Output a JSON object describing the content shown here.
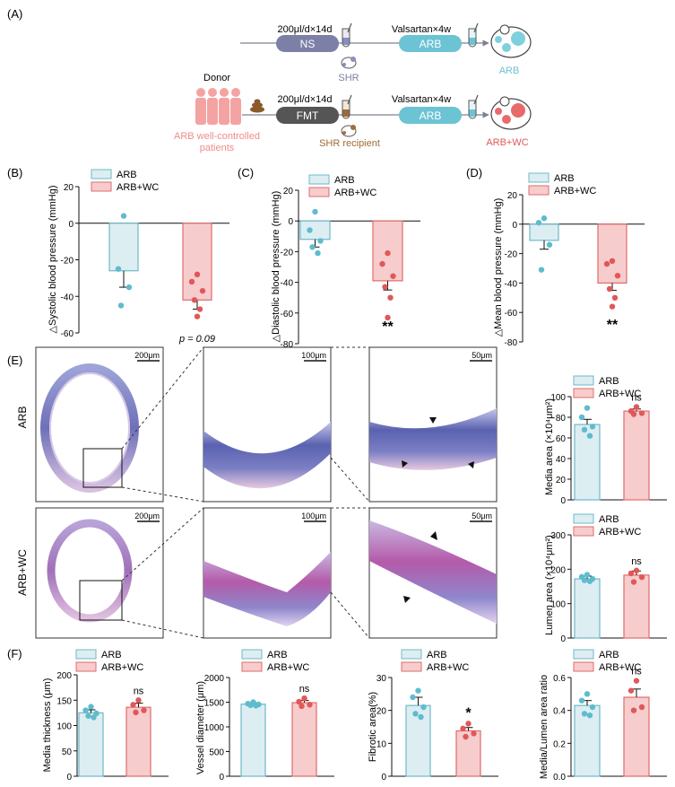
{
  "panels": {
    "A": "(A)",
    "B": "(B)",
    "C": "(C)",
    "D": "(D)",
    "E": "(E)",
    "F": "(F)"
  },
  "schematic": {
    "dose1": "200μl/d×14d",
    "ns_label": "NS",
    "valsartan1": "Valsartan×4w",
    "arb_pill1": "ARB",
    "shr_label": "SHR",
    "outcome1": "ARB",
    "donor_label": "Donor",
    "patients_line1": "ARB well-controlled",
    "patients_line2": "patients",
    "dose2": "200μl/d×14d",
    "fmt_label": "FMT",
    "valsartan2": "Valsartan×4w",
    "arb_pill2": "ARB",
    "recipient_label": "SHR recipient",
    "outcome2": "ARB+WC"
  },
  "legend": {
    "arb": "ARB",
    "arbwc": "ARB+WC"
  },
  "colors": {
    "arb_fill": "#dceef2",
    "arb_edge": "#6fb8c8",
    "arb_dot": "#5fbccd",
    "wc_fill": "#f7cccc",
    "wc_edge": "#e06b6b",
    "wc_dot": "#e05858",
    "ns_pill": "#7c7fa6",
    "fmt_pill": "#555555",
    "arb_pill": "#6cc3d3",
    "donor": "#f4a3a3"
  },
  "histology": {
    "row_labels": [
      "ARB",
      "ARB+WC"
    ],
    "scale_bars": [
      "200μm",
      "100μm",
      "50μm"
    ]
  },
  "chart_data": [
    {
      "id": "B",
      "type": "bar",
      "title": "",
      "ylabel": "△Systolic blood pressure (mmHg)",
      "ylim": [
        -60,
        20
      ],
      "yticks": [
        "20",
        "0",
        "-20",
        "-40",
        "-60"
      ],
      "categories": [
        "ARB",
        "ARB+WC"
      ],
      "values": [
        -26,
        -42
      ],
      "errors": [
        9,
        5
      ],
      "points": [
        [
          4,
          -25,
          -35,
          -45
        ],
        [
          -28,
          -32,
          -37,
          -42,
          -47,
          -51
        ]
      ],
      "annotation": "p = 0.09"
    },
    {
      "id": "C",
      "type": "bar",
      "title": "",
      "ylabel": "△Diastolic blood pressure (mmHg)",
      "ylim": [
        -80,
        20
      ],
      "yticks": [
        "20",
        "0",
        "-20",
        "-40",
        "-60",
        "-80"
      ],
      "categories": [
        "ARB",
        "ARB+WC"
      ],
      "values": [
        -12,
        -39
      ],
      "errors": [
        5,
        6
      ],
      "points": [
        [
          6,
          -6,
          -13,
          -17,
          -21
        ],
        [
          -21,
          -28,
          -36,
          -43,
          -50,
          -63
        ]
      ],
      "annotation": "**"
    },
    {
      "id": "D",
      "type": "bar",
      "title": "",
      "ylabel": "△Mean blood pressure (mmHg)",
      "ylim": [
        -80,
        20
      ],
      "yticks": [
        "20",
        "0",
        "-20",
        "-40",
        "-60",
        "-80"
      ],
      "categories": [
        "ARB",
        "ARB+WC"
      ],
      "values": [
        -11,
        -40
      ],
      "errors": [
        6,
        5
      ],
      "points": [
        [
          4,
          1,
          -14,
          -31
        ],
        [
          -25,
          -27,
          -35,
          -44,
          -50,
          -56
        ]
      ],
      "annotation": "**"
    },
    {
      "id": "E1",
      "type": "bar",
      "title": "",
      "ylabel": "Media area (×10⁴μm²)",
      "ylim": [
        0,
        100
      ],
      "yticks": [
        "100",
        "80",
        "60",
        "40",
        "20",
        "0"
      ],
      "categories": [
        "ARB",
        "ARB+WC"
      ],
      "values": [
        73,
        86
      ],
      "errors": [
        5,
        2
      ],
      "points": [
        [
          89,
          80,
          71,
          68,
          62
        ],
        [
          90,
          86,
          84,
          83
        ]
      ],
      "annotation": "ns"
    },
    {
      "id": "E2",
      "type": "bar",
      "title": "",
      "ylabel": "Lumen area (×10⁴μm²)",
      "ylim": [
        0,
        300
      ],
      "yticks": [
        "300",
        "200",
        "100",
        "0"
      ],
      "categories": [
        "ARB",
        "ARB+WC"
      ],
      "values": [
        172,
        183
      ],
      "errors": [
        8,
        12
      ],
      "points": [
        [
          184,
          178,
          172,
          168,
          165
        ],
        [
          196,
          188,
          177,
          163
        ]
      ],
      "annotation": "ns"
    },
    {
      "id": "F1",
      "type": "bar",
      "title": "",
      "ylabel": "Media thickness (μm)",
      "ylim": [
        0,
        200
      ],
      "yticks": [
        "200",
        "150",
        "100",
        "50",
        "0"
      ],
      "categories": [
        "ARB",
        "ARB+WC"
      ],
      "values": [
        125,
        136
      ],
      "errors": [
        6,
        8
      ],
      "points": [
        [
          137,
          130,
          124,
          119,
          116
        ],
        [
          150,
          141,
          130,
          126
        ]
      ],
      "annotation": "ns"
    },
    {
      "id": "F2",
      "type": "bar",
      "title": "",
      "ylabel": "Vessel diameter (μm)",
      "ylim": [
        0,
        2000
      ],
      "yticks": [
        "2000",
        "1500",
        "1000",
        "500",
        "0"
      ],
      "categories": [
        "ARB",
        "ARB+WC"
      ],
      "values": [
        1460,
        1490
      ],
      "errors": [
        25,
        45
      ],
      "points": [
        [
          1500,
          1470,
          1455,
          1440,
          1430
        ],
        [
          1580,
          1510,
          1450,
          1420
        ]
      ],
      "annotation": "ns"
    },
    {
      "id": "F3",
      "type": "bar",
      "title": "",
      "ylabel": "Fibrotic area(%)",
      "ylim": [
        0,
        30
      ],
      "yticks": [
        "30",
        "20",
        "10",
        "0"
      ],
      "categories": [
        "ARB",
        "ARB+WC"
      ],
      "values": [
        21.5,
        13.8
      ],
      "errors": [
        2.5,
        1
      ],
      "points": [
        [
          26,
          24,
          21,
          19,
          18
        ],
        [
          16,
          14.5,
          13,
          12
        ]
      ],
      "annotation": "*"
    },
    {
      "id": "F4",
      "type": "bar",
      "title": "",
      "ylabel": "Media/Lumen area ratio",
      "ylim": [
        0,
        0.6
      ],
      "yticks": [
        "0.6",
        "0.4",
        "0.2",
        "0.0"
      ],
      "categories": [
        "ARB",
        "ARB+WC"
      ],
      "values": [
        0.43,
        0.48
      ],
      "errors": [
        0.03,
        0.05
      ],
      "points": [
        [
          0.5,
          0.46,
          0.42,
          0.38,
          0.37
        ],
        [
          0.58,
          0.52,
          0.42,
          0.4
        ]
      ],
      "annotation": "ns"
    }
  ]
}
